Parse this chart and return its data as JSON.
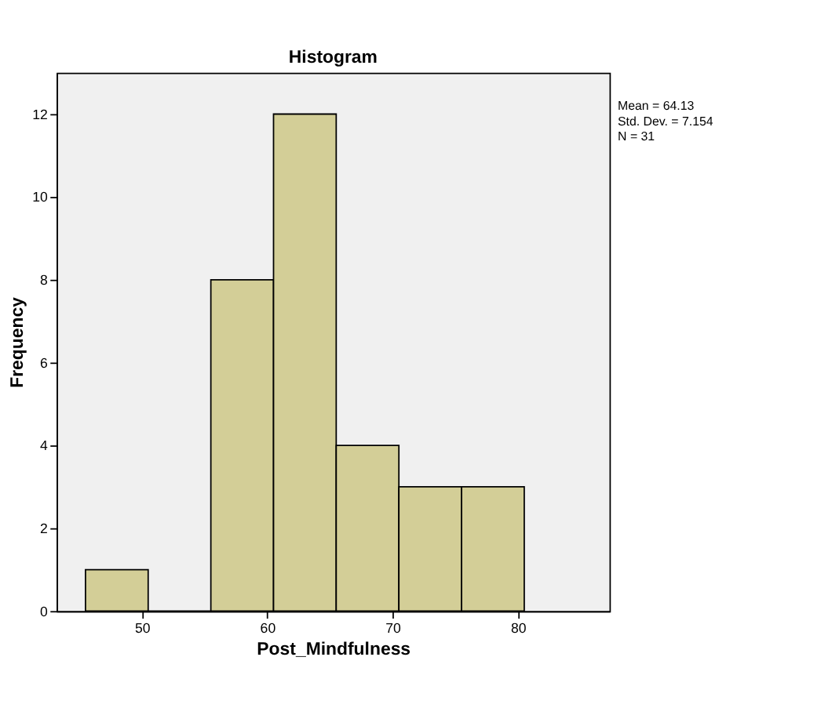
{
  "chart_data": {
    "type": "histogram",
    "title": "Histogram",
    "xlabel": "Post_Mindfulness",
    "ylabel": "Frequency",
    "bins": [
      45.5,
      50.5,
      55.5,
      60.5,
      65.5,
      70.5,
      75.5,
      80.5
    ],
    "values": [
      1,
      0,
      8,
      12,
      4,
      3,
      3
    ],
    "color": "#d3ce97",
    "xlim": [
      43.2,
      87.3
    ],
    "xticks": [
      50,
      60,
      70,
      80
    ],
    "ylim": [
      0,
      13
    ],
    "yticks": [
      0,
      2,
      4,
      6,
      8,
      10,
      12
    ],
    "grid": false,
    "annotations": [
      "Mean = 64.13",
      "Std. Dev. = 7.154",
      "N = 31"
    ]
  }
}
